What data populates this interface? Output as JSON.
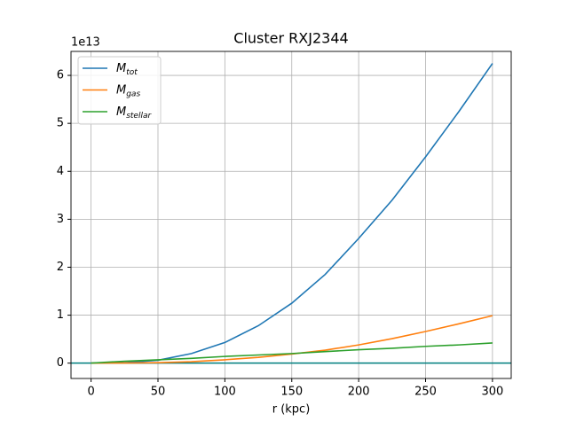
{
  "chart_data": {
    "type": "line",
    "title": "Cluster RXJ2344",
    "xlabel": "r (kpc)",
    "y_offset_label": "1e13",
    "x": [
      0,
      25,
      50,
      75,
      100,
      125,
      150,
      175,
      200,
      225,
      250,
      275,
      300
    ],
    "series": [
      {
        "name": "M_tot",
        "color": "#1f77b4",
        "values": [
          0,
          0.01,
          0.06,
          0.2,
          0.43,
          0.78,
          1.25,
          1.85,
          2.6,
          3.4,
          4.3,
          5.25,
          6.25
        ]
      },
      {
        "name": "M_gas",
        "color": "#ff7f0e",
        "values": [
          0,
          0.002,
          0.01,
          0.03,
          0.07,
          0.12,
          0.19,
          0.27,
          0.38,
          0.51,
          0.66,
          0.82,
          0.99
        ]
      },
      {
        "name": "M_stellar",
        "color": "#2ca02c",
        "values": [
          0,
          0.04,
          0.07,
          0.1,
          0.14,
          0.17,
          0.2,
          0.24,
          0.28,
          0.31,
          0.35,
          0.38,
          0.42
        ]
      }
    ],
    "hline": {
      "value": 0,
      "color": "#008080"
    },
    "xlim": [
      -15,
      314
    ],
    "ylim": [
      -0.32,
      6.5
    ],
    "xticks": [
      0,
      50,
      100,
      150,
      200,
      250,
      300
    ],
    "yticks": [
      0,
      1,
      2,
      3,
      4,
      5,
      6
    ],
    "grid": true,
    "legend": "upper left"
  }
}
